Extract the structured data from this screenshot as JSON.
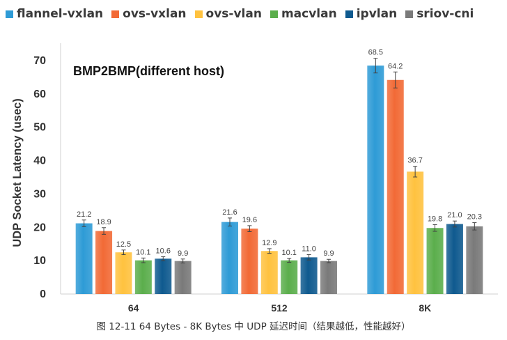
{
  "chart_data": {
    "type": "bar",
    "title": "BMP2BMP(different host)",
    "xlabel": "",
    "ylabel": "UDP Socket Latency (usec)",
    "categories": [
      "64",
      "512",
      "8K"
    ],
    "ylim": [
      0,
      75
    ],
    "yticks": [
      0,
      10,
      20,
      30,
      40,
      50,
      60,
      70
    ],
    "grid": false,
    "legend_position": "top",
    "series": [
      {
        "name": "flannel-vxlan",
        "color": "#2E9BD6",
        "values": [
          21.2,
          21.6,
          68.5
        ],
        "labels": [
          "21.2",
          "21.6",
          "68.5"
        ],
        "errors": [
          1.0,
          1.2,
          2.2
        ]
      },
      {
        "name": "ovs-vxlan",
        "color": "#F26A36",
        "values": [
          18.9,
          19.6,
          64.2
        ],
        "labels": [
          "18.9",
          "19.6",
          "64.2"
        ],
        "errors": [
          1.0,
          0.9,
          2.4
        ]
      },
      {
        "name": "ovs-vlan",
        "color": "#FFC23F",
        "values": [
          12.5,
          12.9,
          36.7
        ],
        "labels": [
          "12.5",
          "12.9",
          "36.7"
        ],
        "errors": [
          0.7,
          0.7,
          1.6
        ]
      },
      {
        "name": "macvlan",
        "color": "#5BAE4C",
        "values": [
          10.1,
          10.1,
          19.8
        ],
        "labels": [
          "10.1",
          "10.1",
          "19.8"
        ],
        "errors": [
          0.7,
          0.6,
          1.0
        ]
      },
      {
        "name": "ipvlan",
        "color": "#0F5A8F",
        "values": [
          10.6,
          11.0,
          21.0
        ],
        "labels": [
          "10.6",
          "11.0",
          "21.0"
        ],
        "errors": [
          0.6,
          0.8,
          0.9
        ]
      },
      {
        "name": "sriov-cni",
        "color": "#7A7A7A",
        "values": [
          9.9,
          9.9,
          20.3
        ],
        "labels": [
          "9.9",
          "9.9",
          "20.3"
        ],
        "errors": [
          0.6,
          0.5,
          1.1
        ]
      }
    ]
  },
  "caption": "图 12-11 64 Bytes - 8K Bytes 中 UDP 延迟时间（结果越低，性能越好）"
}
